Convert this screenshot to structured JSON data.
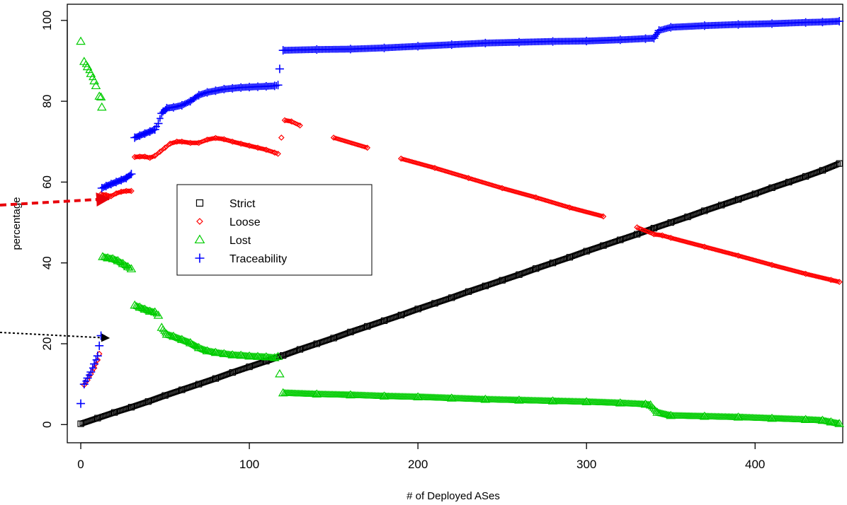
{
  "chart_data": {
    "type": "scatter",
    "xlabel": "# of Deployed ASes",
    "ylabel": "percentage",
    "xlim": [
      -8,
      452
    ],
    "ylim": [
      -4.5,
      104
    ],
    "x_ticks": [
      0,
      100,
      200,
      300,
      400
    ],
    "y_ticks": [
      0,
      20,
      40,
      60,
      80,
      100
    ],
    "legend": {
      "placement": "center-left",
      "entries": [
        "Strict",
        "Loose",
        "Lost",
        "Traceability"
      ]
    },
    "series": [
      {
        "name": "Strict",
        "color": "#000000",
        "marker": "square",
        "points": [
          [
            0,
            0.2
          ],
          [
            10,
            1.6
          ],
          [
            20,
            3.0
          ],
          [
            30,
            4.3
          ],
          [
            40,
            5.7
          ],
          [
            50,
            7.2
          ],
          [
            60,
            8.6
          ],
          [
            70,
            10.0
          ],
          [
            80,
            11.4
          ],
          [
            90,
            12.9
          ],
          [
            100,
            14.3
          ],
          [
            110,
            15.7
          ],
          [
            120,
            17.1
          ],
          [
            130,
            18.6
          ],
          [
            140,
            20.0
          ],
          [
            150,
            21.4
          ],
          [
            160,
            22.9
          ],
          [
            170,
            24.3
          ],
          [
            180,
            25.7
          ],
          [
            190,
            27.1
          ],
          [
            200,
            28.6
          ],
          [
            210,
            30.0
          ],
          [
            220,
            31.4
          ],
          [
            230,
            32.9
          ],
          [
            240,
            34.3
          ],
          [
            250,
            35.7
          ],
          [
            260,
            37.1
          ],
          [
            270,
            38.6
          ],
          [
            280,
            40.0
          ],
          [
            290,
            41.4
          ],
          [
            300,
            42.9
          ],
          [
            310,
            44.3
          ],
          [
            320,
            45.7
          ],
          [
            330,
            47.1
          ],
          [
            340,
            48.6
          ],
          [
            350,
            50.0
          ],
          [
            360,
            51.4
          ],
          [
            370,
            52.9
          ],
          [
            380,
            54.3
          ],
          [
            390,
            55.7
          ],
          [
            400,
            57.1
          ],
          [
            410,
            58.6
          ],
          [
            420,
            60.0
          ],
          [
            430,
            61.4
          ],
          [
            440,
            62.9
          ],
          [
            450,
            64.6
          ]
        ]
      },
      {
        "name": "Loose",
        "color": "#ff0000",
        "marker": "diamond",
        "points": [
          [
            2,
            9.8
          ],
          [
            4,
            11.0
          ],
          [
            6,
            12.5
          ],
          [
            8,
            14.0
          ],
          [
            10,
            16.0
          ],
          [
            11,
            17.5
          ],
          [
            12,
            57.0
          ],
          [
            15,
            56.8
          ],
          [
            18,
            56.5
          ],
          [
            21,
            57.2
          ],
          [
            24,
            57.6
          ],
          [
            27,
            57.8
          ],
          [
            30,
            57.8
          ],
          [
            32,
            66.2
          ],
          [
            35,
            66.3
          ],
          [
            38,
            66.3
          ],
          [
            41,
            66.0
          ],
          [
            44,
            66.5
          ],
          [
            47,
            67.5
          ],
          [
            50,
            68.5
          ],
          [
            53,
            69.5
          ],
          [
            57,
            70.0
          ],
          [
            60,
            70.0
          ],
          [
            65,
            69.7
          ],
          [
            70,
            69.7
          ],
          [
            75,
            70.5
          ],
          [
            80,
            70.9
          ],
          [
            85,
            70.6
          ],
          [
            90,
            70.0
          ],
          [
            95,
            69.5
          ],
          [
            100,
            69.0
          ],
          [
            105,
            68.5
          ],
          [
            110,
            68.0
          ],
          [
            115,
            67.3
          ],
          [
            117,
            67.0
          ],
          [
            119,
            71.0
          ],
          [
            121,
            75.3
          ],
          [
            125,
            75.0
          ],
          [
            130,
            74.0
          ],
          [
            150,
            71.0
          ],
          [
            170,
            68.5
          ],
          [
            190,
            65.8
          ],
          [
            210,
            63.5
          ],
          [
            230,
            61.0
          ],
          [
            250,
            58.5
          ],
          [
            270,
            56.2
          ],
          [
            290,
            53.7
          ],
          [
            310,
            51.5
          ],
          [
            330,
            48.8
          ],
          [
            340,
            47.1
          ],
          [
            345,
            46.8
          ],
          [
            350,
            46.2
          ],
          [
            370,
            44.0
          ],
          [
            390,
            41.8
          ],
          [
            410,
            39.5
          ],
          [
            430,
            37.3
          ],
          [
            445,
            35.8
          ],
          [
            450,
            35.3
          ]
        ]
      },
      {
        "name": "Lost",
        "color": "#00cc00",
        "marker": "triangle",
        "points": [
          [
            0,
            94.8
          ],
          [
            2,
            89.8
          ],
          [
            4,
            88.5
          ],
          [
            6,
            86.8
          ],
          [
            8,
            85.0
          ],
          [
            9,
            83.8
          ],
          [
            11,
            81.2
          ],
          [
            12,
            81.0
          ],
          [
            12.5,
            78.5
          ],
          [
            13,
            41.5
          ],
          [
            16,
            41.2
          ],
          [
            19,
            41.0
          ],
          [
            22,
            40.5
          ],
          [
            25,
            39.8
          ],
          [
            28,
            39.0
          ],
          [
            30,
            38.5
          ],
          [
            32,
            29.5
          ],
          [
            35,
            29.0
          ],
          [
            38,
            28.5
          ],
          [
            41,
            28.0
          ],
          [
            44,
            27.8
          ],
          [
            46,
            27.0
          ],
          [
            48,
            24.0
          ],
          [
            51,
            22.3
          ],
          [
            55,
            21.8
          ],
          [
            60,
            21.0
          ],
          [
            65,
            20.2
          ],
          [
            70,
            19.0
          ],
          [
            75,
            18.2
          ],
          [
            80,
            17.8
          ],
          [
            85,
            17.5
          ],
          [
            90,
            17.2
          ],
          [
            95,
            17.1
          ],
          [
            100,
            16.9
          ],
          [
            105,
            16.8
          ],
          [
            110,
            16.7
          ],
          [
            115,
            16.5
          ],
          [
            117,
            16.8
          ],
          [
            118,
            12.5
          ],
          [
            120,
            7.8
          ],
          [
            140,
            7.5
          ],
          [
            160,
            7.3
          ],
          [
            180,
            7.0
          ],
          [
            200,
            6.8
          ],
          [
            220,
            6.5
          ],
          [
            240,
            6.2
          ],
          [
            260,
            6.0
          ],
          [
            280,
            5.8
          ],
          [
            300,
            5.6
          ],
          [
            320,
            5.3
          ],
          [
            335,
            5.0
          ],
          [
            338,
            4.8
          ],
          [
            342,
            3.0
          ],
          [
            350,
            2.2
          ],
          [
            370,
            2.0
          ],
          [
            390,
            1.8
          ],
          [
            410,
            1.5
          ],
          [
            430,
            1.2
          ],
          [
            440,
            1.0
          ],
          [
            445,
            0.6
          ],
          [
            450,
            0.2
          ]
        ]
      },
      {
        "name": "Traceability",
        "color": "#0000ff",
        "marker": "plus",
        "points": [
          [
            0,
            5.2
          ],
          [
            2,
            10.0
          ],
          [
            4,
            11.5
          ],
          [
            6,
            13.0
          ],
          [
            8,
            15.0
          ],
          [
            10,
            17.0
          ],
          [
            11,
            19.5
          ],
          [
            12,
            22.0
          ],
          [
            12.5,
            58.5
          ],
          [
            15,
            59.0
          ],
          [
            18,
            59.5
          ],
          [
            21,
            60.0
          ],
          [
            24,
            60.5
          ],
          [
            27,
            61.0
          ],
          [
            30,
            62.0
          ],
          [
            32,
            71.0
          ],
          [
            35,
            71.5
          ],
          [
            38,
            72.0
          ],
          [
            41,
            72.5
          ],
          [
            44,
            73.0
          ],
          [
            46,
            74.5
          ],
          [
            48,
            77.0
          ],
          [
            51,
            78.3
          ],
          [
            55,
            78.5
          ],
          [
            60,
            79.0
          ],
          [
            65,
            80.0
          ],
          [
            70,
            81.5
          ],
          [
            75,
            82.2
          ],
          [
            80,
            82.6
          ],
          [
            85,
            83.0
          ],
          [
            90,
            83.2
          ],
          [
            95,
            83.4
          ],
          [
            100,
            83.5
          ],
          [
            105,
            83.6
          ],
          [
            110,
            83.7
          ],
          [
            115,
            83.8
          ],
          [
            117,
            84.0
          ],
          [
            118,
            88.0
          ],
          [
            120,
            92.6
          ],
          [
            140,
            92.8
          ],
          [
            160,
            92.9
          ],
          [
            180,
            93.2
          ],
          [
            200,
            93.6
          ],
          [
            220,
            94.0
          ],
          [
            240,
            94.4
          ],
          [
            260,
            94.6
          ],
          [
            280,
            94.8
          ],
          [
            300,
            94.9
          ],
          [
            320,
            95.2
          ],
          [
            335,
            95.5
          ],
          [
            340,
            95.6
          ],
          [
            343,
            97.5
          ],
          [
            350,
            98.3
          ],
          [
            370,
            98.7
          ],
          [
            390,
            99.0
          ],
          [
            410,
            99.2
          ],
          [
            430,
            99.5
          ],
          [
            440,
            99.6
          ],
          [
            450,
            99.8
          ]
        ]
      }
    ]
  }
}
